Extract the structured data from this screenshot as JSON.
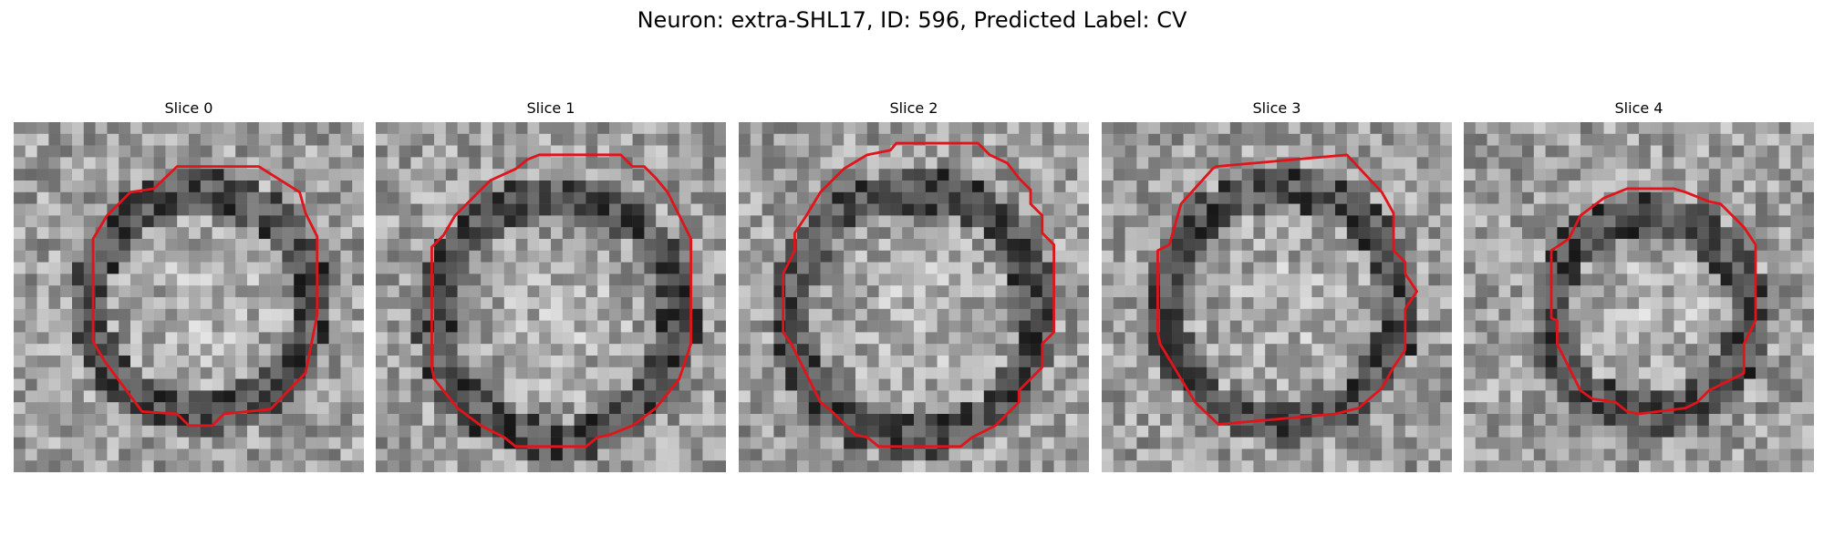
{
  "figure": {
    "title": "Neuron: extra-SHL17, ID: 596, Predicted Label: CV"
  },
  "colors": {
    "contour": "#e0141a",
    "background": "#ffffff"
  },
  "panels": [
    {
      "title": "Slice 0"
    },
    {
      "title": "Slice 1"
    },
    {
      "title": "Slice 2"
    },
    {
      "title": "Slice 3"
    },
    {
      "title": "Slice 4"
    }
  ]
}
